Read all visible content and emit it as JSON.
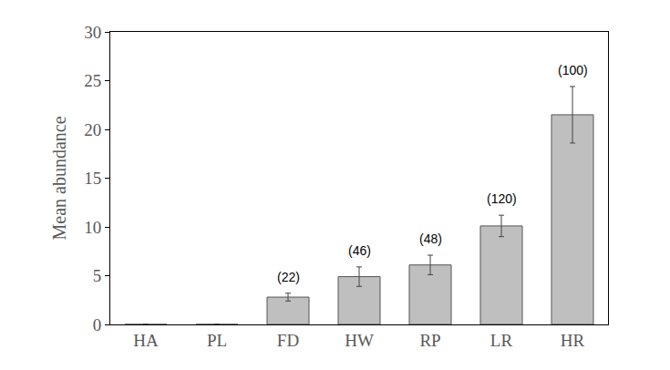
{
  "chart_data": {
    "type": "bar",
    "y_label": "Mean abundance",
    "categories": [
      "HA",
      "PL",
      "FD",
      "HW",
      "RP",
      "LR",
      "HR"
    ],
    "values": [
      0,
      0,
      2.8,
      4.9,
      6.1,
      10.1,
      21.5
    ],
    "error": [
      0,
      0,
      0.4,
      1.0,
      1.0,
      1.1,
      2.9
    ],
    "color": "#bfbfbf",
    "ylim": [
      0,
      30
    ],
    "yticks": [
      0,
      5,
      10,
      15,
      20,
      25,
      30
    ],
    "grid": false,
    "annotations": [
      {
        "category": "FD",
        "text": "(22)"
      },
      {
        "category": "HW",
        "text": "(46)"
      },
      {
        "category": "RP",
        "text": "(48)"
      },
      {
        "category": "LR",
        "text": "(120)"
      },
      {
        "category": "HR",
        "text": "(100)"
      }
    ]
  }
}
